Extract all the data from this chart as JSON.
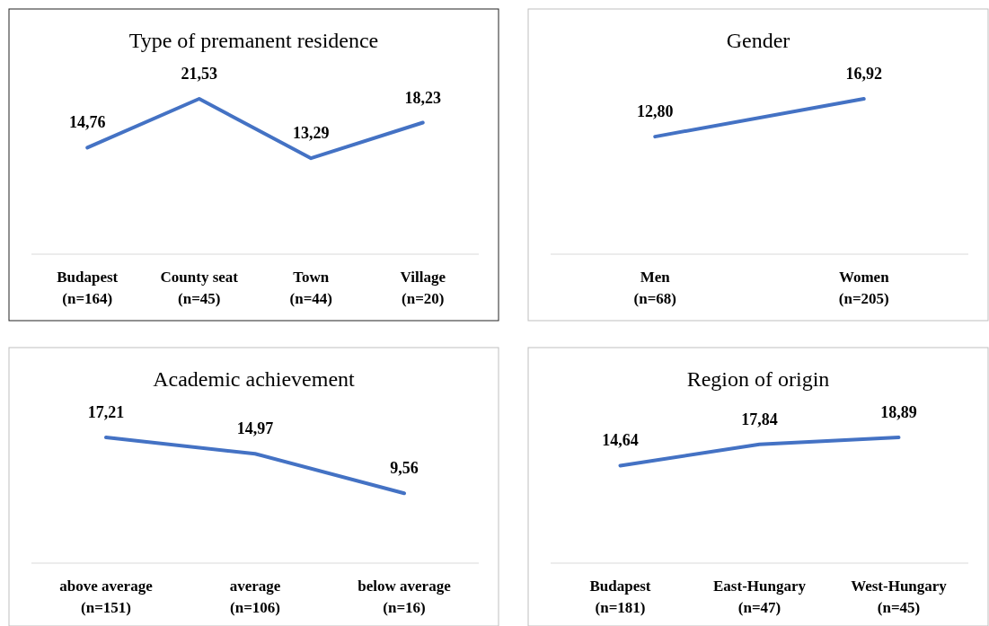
{
  "chart_data": [
    {
      "type": "line",
      "title": "Type of premanent residence",
      "categories": [
        "Budapest (n=164)",
        "County seat (n=45)",
        "Town (n=44)",
        "Village (n=20)"
      ],
      "series": [
        {
          "color": "#4472c4",
          "values": [
            14.76,
            21.53,
            13.29,
            18.23
          ],
          "value_labels": [
            "14,76",
            "21,53",
            "13,29",
            "18,23"
          ]
        }
      ]
    },
    {
      "type": "line",
      "title": "Gender",
      "categories": [
        "Men (n=68)",
        "Women (n=205)"
      ],
      "series": [
        {
          "color": "#4472c4",
          "values": [
            12.8,
            16.92
          ],
          "value_labels": [
            "12,80",
            "16,92"
          ]
        }
      ]
    },
    {
      "type": "line",
      "title": "Academic achievement",
      "categories": [
        "above average (n=151)",
        "average (n=106)",
        "below average (n=16)"
      ],
      "series": [
        {
          "color": "#4472c4",
          "values": [
            17.21,
            14.97,
            9.56
          ],
          "value_labels": [
            "17,21",
            "14,97",
            "9,56"
          ]
        }
      ]
    },
    {
      "type": "line",
      "title": "Region of origin",
      "categories": [
        "Budapest (n=181)",
        "East-Hungary (n=47)",
        "West-Hungary (n=45)"
      ],
      "series": [
        {
          "color": "#4472c4",
          "values": [
            14.64,
            17.84,
            18.89
          ],
          "value_labels": [
            "14,64",
            "17,84",
            "18,89"
          ]
        }
      ]
    }
  ]
}
